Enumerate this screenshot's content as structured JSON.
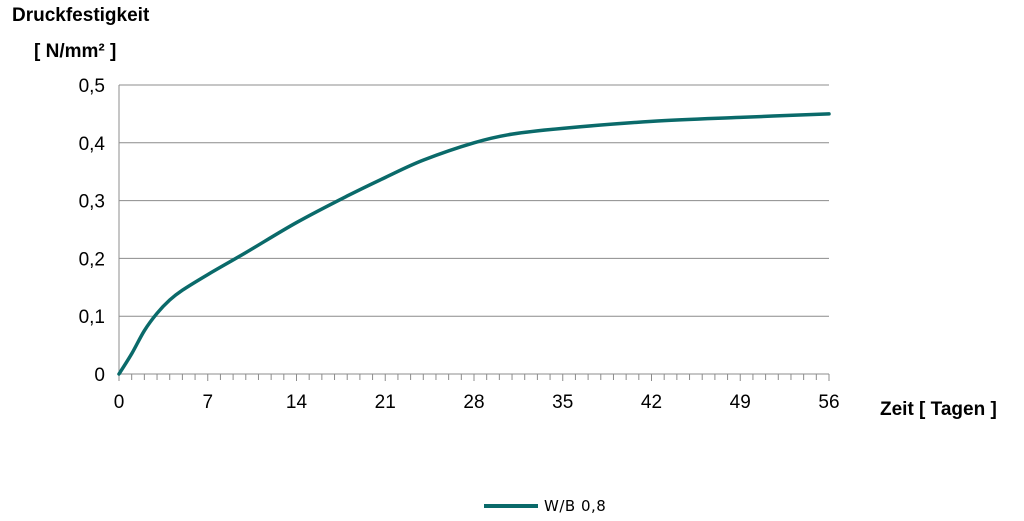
{
  "chart_data": {
    "type": "line",
    "ylabel_lines": [
      "Druckfestigkeit",
      "[ N/mm² ]"
    ],
    "xlabel": "Zeit [ Tagen ]",
    "xlim": [
      0,
      56
    ],
    "ylim": [
      0,
      0.5
    ],
    "x_ticks": [
      "0",
      "7",
      "14",
      "21",
      "28",
      "35",
      "42",
      "49",
      "56"
    ],
    "y_ticks": [
      "0",
      "0,1",
      "0,2",
      "0,3",
      "0,4",
      "0,5"
    ],
    "grid": true,
    "legend_position": "bottom",
    "series": [
      {
        "name": "W/B 0,8",
        "color": "#0a6a6a",
        "x": [
          0,
          1,
          2,
          3,
          4,
          5,
          7,
          10,
          14,
          18,
          21,
          24,
          28,
          31,
          35,
          42,
          49,
          56
        ],
        "y": [
          0,
          0.035,
          0.075,
          0.105,
          0.128,
          0.145,
          0.172,
          0.21,
          0.262,
          0.308,
          0.34,
          0.37,
          0.4,
          0.415,
          0.425,
          0.437,
          0.444,
          0.45
        ]
      }
    ]
  }
}
